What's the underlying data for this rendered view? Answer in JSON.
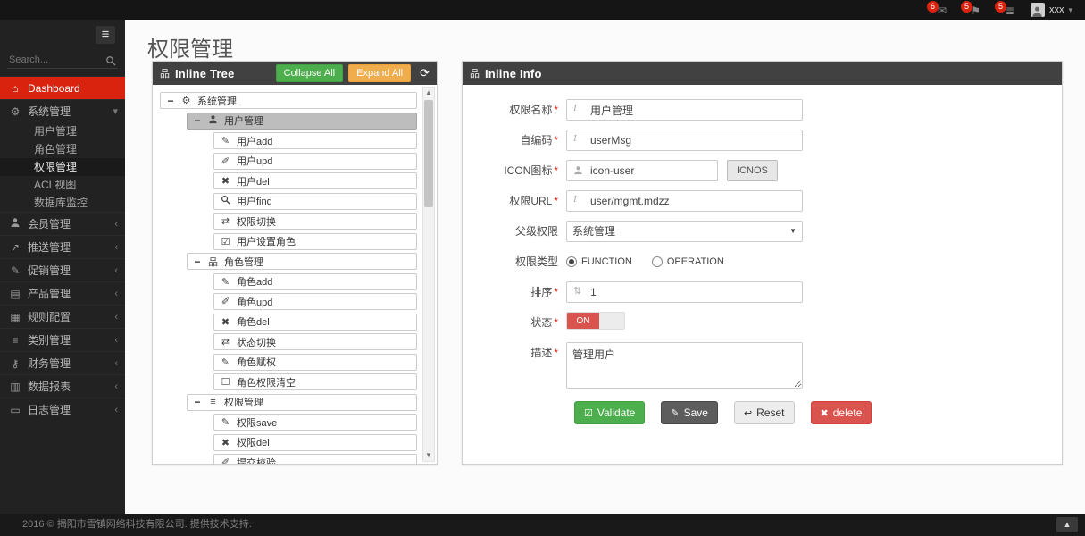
{
  "colors": {
    "accent": "#d9230f",
    "danger": "#d9534f",
    "success": "#4cae4c",
    "warning": "#f0ad4e"
  },
  "navbar": {
    "badges": [
      {
        "icon": "envelope-icon",
        "count": "6"
      },
      {
        "icon": "flag-icon",
        "count": "5"
      },
      {
        "icon": "tasks-icon",
        "count": "5"
      }
    ],
    "user": {
      "name": "xxx",
      "icon": "person-icon",
      "chevron": "chevron-down-icon"
    }
  },
  "sidebar": {
    "search_placeholder": "Search...",
    "items": [
      {
        "icon": "home-icon",
        "label": "Dashboard",
        "active": true
      },
      {
        "icon": "gears-icon",
        "label": "系统管理",
        "expanded": true,
        "children": [
          {
            "label": "用户管理"
          },
          {
            "label": "角色管理"
          },
          {
            "label": "权限管理",
            "active": true
          },
          {
            "label": "ACL视图"
          },
          {
            "label": "数据库监控"
          }
        ]
      },
      {
        "icon": "person-icon",
        "label": "会员管理",
        "collapsible": true
      },
      {
        "icon": "share-icon",
        "label": "推送管理",
        "collapsible": true
      },
      {
        "icon": "pencil-icon",
        "label": "促销管理",
        "collapsible": true
      },
      {
        "icon": "book-icon",
        "label": "产品管理",
        "collapsible": true
      },
      {
        "icon": "table-icon",
        "label": "规则配置",
        "collapsible": true
      },
      {
        "icon": "list-icon",
        "label": "类别管理",
        "collapsible": true
      },
      {
        "icon": "key-icon",
        "label": "财务管理",
        "collapsible": true
      },
      {
        "icon": "chart-icon",
        "label": "数据报表",
        "collapsible": true
      },
      {
        "icon": "calendar-icon",
        "label": "日志管理",
        "collapsible": true
      }
    ]
  },
  "page": {
    "title": "权限管理"
  },
  "tree_panel": {
    "icon": "sitemap-icon",
    "title": "Inline Tree",
    "collapse_all_label": "Collapse All",
    "expand_all_label": "Expand All",
    "refresh_icon": "refresh-icon",
    "rows": [
      {
        "level": 0,
        "toggle": "minus",
        "icon": "gears-icon",
        "label": "系统管理"
      },
      {
        "level": 1,
        "toggle": "minus",
        "icon": "person-icon",
        "label": "用户管理",
        "selected": true
      },
      {
        "level": 2,
        "icon": "pencil-icon",
        "label": "用户add"
      },
      {
        "level": 2,
        "icon": "edit-icon",
        "label": "用户upd"
      },
      {
        "level": 2,
        "icon": "x-icon",
        "label": "用户del"
      },
      {
        "level": 2,
        "icon": "search-icon",
        "label": "用户find"
      },
      {
        "level": 2,
        "icon": "retweet-icon",
        "label": "权限切换"
      },
      {
        "level": 2,
        "icon": "check-square-icon",
        "label": "用户设置角色"
      },
      {
        "level": 1,
        "toggle": "minus",
        "icon": "sitemap-icon",
        "label": "角色管理"
      },
      {
        "level": 2,
        "icon": "pencil-icon",
        "label": "角色add"
      },
      {
        "level": 2,
        "icon": "edit-icon",
        "label": "角色upd"
      },
      {
        "level": 2,
        "icon": "x-icon",
        "label": "角色del"
      },
      {
        "level": 2,
        "icon": "retweet-icon",
        "label": "状态切换"
      },
      {
        "level": 2,
        "icon": "pencil-icon",
        "label": "角色赋权"
      },
      {
        "level": 2,
        "icon": "square-icon",
        "label": "角色权限清空"
      },
      {
        "level": 1,
        "toggle": "minus",
        "icon": "list-icon",
        "label": "权限管理"
      },
      {
        "level": 2,
        "icon": "pencil-icon",
        "label": "权限save"
      },
      {
        "level": 2,
        "icon": "x-icon",
        "label": "权限del"
      },
      {
        "level": 2,
        "icon": "edit-icon",
        "label": "提交校验"
      }
    ]
  },
  "info_panel": {
    "icon": "sitemap-icon",
    "title": "Inline Info",
    "fields": {
      "name": {
        "label": "权限名称",
        "required": true,
        "icon": "italic-icon",
        "value": "用户管理"
      },
      "code": {
        "label": "自编码",
        "required": true,
        "icon": "italic-icon",
        "value": "userMsg"
      },
      "icon": {
        "label": "ICON图标",
        "required": true,
        "icon": "person-icon",
        "value": "icon-user",
        "button_label": "ICNOS"
      },
      "url": {
        "label": "权限URL",
        "required": true,
        "icon": "italic-icon",
        "value": "user/mgmt.mdzz"
      },
      "parent": {
        "label": "父级权限",
        "required": false,
        "value": "系统管理"
      },
      "type": {
        "label": "权限类型",
        "options": [
          "FUNCTION",
          "OPERATION"
        ],
        "selected": "FUNCTION"
      },
      "sort": {
        "label": "排序",
        "required": true,
        "icon": "sort-icon",
        "value": "1"
      },
      "status": {
        "label": "状态",
        "required": true,
        "on_label": "ON",
        "state": "on"
      },
      "description": {
        "label": "描述",
        "required": true,
        "value": "管理用户"
      }
    },
    "buttons": [
      {
        "icon": "check-square-icon",
        "label": "Validate",
        "style": "success"
      },
      {
        "icon": "pencil-icon",
        "label": "Save",
        "style": "dark"
      },
      {
        "icon": "reply-icon",
        "label": "Reset",
        "style": "default"
      },
      {
        "icon": "x-icon",
        "label": "delete",
        "style": "danger"
      }
    ]
  },
  "footer": {
    "text": "2016 © 揭阳市雪镇网络科技有限公司. 提供技术支持.",
    "to_top_icon": "chevron-up-icon"
  }
}
